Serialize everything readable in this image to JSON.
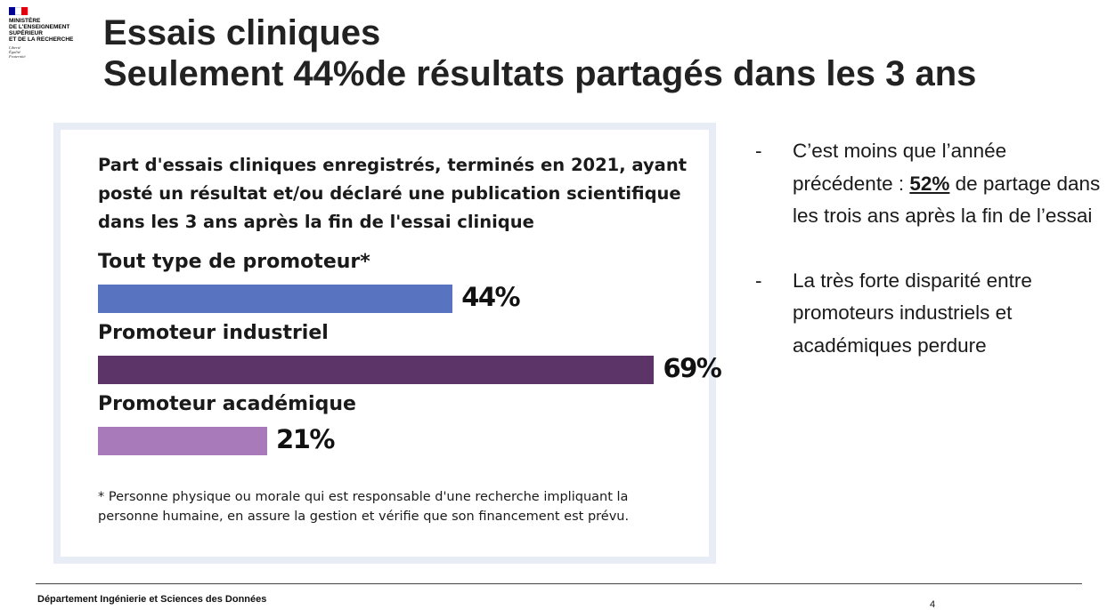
{
  "header": {
    "logo_text": "MINISTÈRE\nDE L'ENSEIGNEMENT\nSUPÉRIEUR\nET DE LA RECHERCHE",
    "motto": "Liberté\nÉgalité\nFraternité",
    "flag_colors": [
      "#000091",
      "#ffffff",
      "#e1000f"
    ],
    "title_line1": "Essais cliniques",
    "title_line2": "Seulement 44%de résultats partagés dans les 3 ans"
  },
  "chart_data": {
    "type": "bar",
    "title": "Part d'essais cliniques enregistrés, terminés en 2021, ayant posté un résultat et/ou déclaré une publication scientifique dans les 3 ans après la fin de l'essai clinique",
    "categories": [
      "Tout type de promoteur*",
      "Promoteur industriel",
      "Promoteur académique"
    ],
    "values": [
      44,
      69,
      21
    ],
    "value_labels": [
      "44%",
      "69%",
      "21%"
    ],
    "colors": [
      "#5873bf",
      "#5d3468",
      "#a97aba"
    ],
    "unit": "%",
    "xlim": [
      0,
      100
    ],
    "orientation": "horizontal",
    "footnote": "* Personne physique ou morale qui est responsable d'une recherche impliquant la personne humaine, en assure la gestion et vérifie que son financement est prévu."
  },
  "bullets": {
    "dash": "-",
    "b1_a": "C’est moins que l’année précédente : ",
    "b1_highlight": "52%",
    "b1_b": " de partage dans les trois ans après la fin de l’essai",
    "b2": "La très forte disparité entre promoteurs industriels et académiques perdure"
  },
  "footer": {
    "department": "Département Ingénierie et Sciences des Données",
    "page": "4"
  }
}
